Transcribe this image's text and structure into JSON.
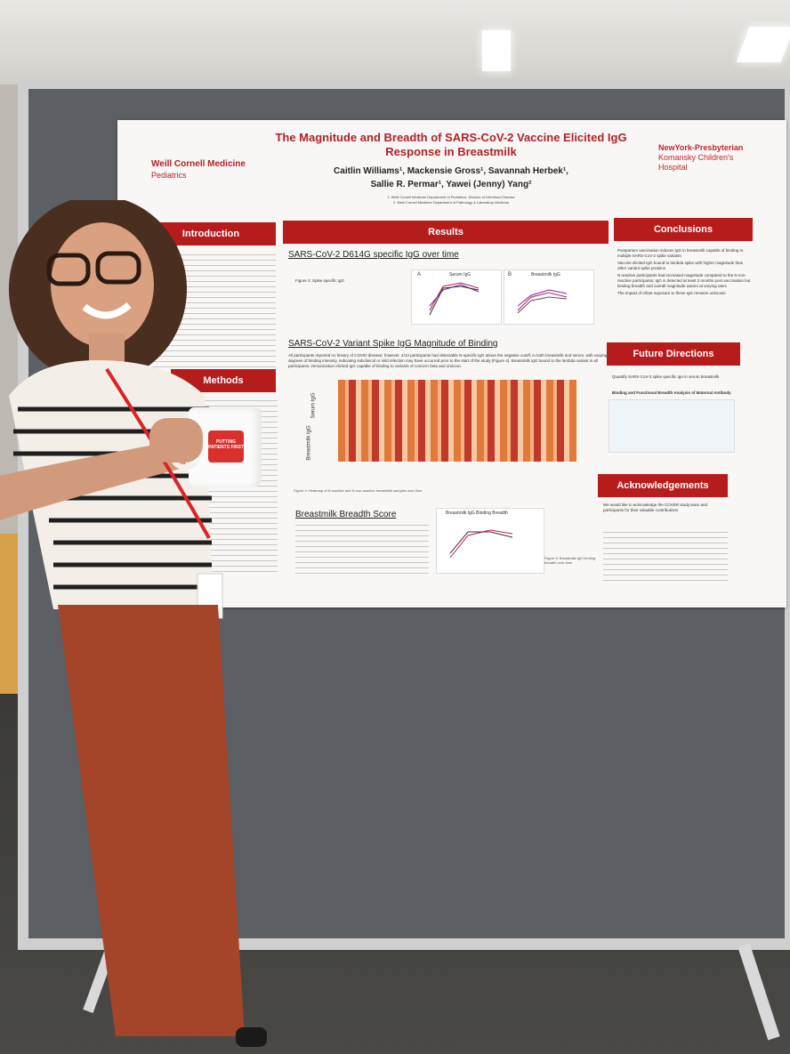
{
  "poster": {
    "title_line1": "The Magnitude and Breadth of SARS-CoV-2 Vaccine Elicited IgG",
    "title_line2": "Response in Breastmilk",
    "authors_line1": "Caitlin Williams¹, Mackensie Gross¹, Savannah Herbek¹,",
    "authors_line2": "Sallie R. Permar¹, Yawei (Jenny) Yang²",
    "affil_line1": "1. Weill Cornell Medicine Department of Pediatrics, Division of Infectious Disease",
    "affil_line2": "2. Weill Cornell Medicine Department of Pathology & Laboratory Medicine",
    "logo_left": "Weill Cornell Medicine",
    "logo_left_sub": "Pediatrics",
    "logo_right": "NewYork-Presbyterian",
    "logo_right_sub1": "Komansky Children's",
    "logo_right_sub2": "Hospital",
    "sections": {
      "introduction": "Introduction",
      "methods": "Methods",
      "results": "Results",
      "conclusions": "Conclusions",
      "future": "Future Directions",
      "acknowledgements": "Acknowledgements"
    },
    "subheads": {
      "d614g": "SARS-CoV-2 D614G specific IgG over time",
      "variant": "SARS-CoV-2 Variant Spike IgG Magnitude of Binding",
      "breadth": "Breastmilk Breadth Score"
    },
    "conclusions_items": [
      "Postpartum vaccination induces IgG in breastmilk capable of binding to multiple SARS-CoV-2 spike variants",
      "Vaccine elicited IgG bound to lambda spike with higher magnitude than other variant spike proteins",
      "N reactive participants had increased magnitude compared to the N non-reactive participants; IgG is detected at least 3 months post vaccination but binding breadth and overall magnitude wanes at varying rates",
      "The impact of infant exposure to these IgG remains unknown"
    ],
    "future_item": "Quantify SARS-CoV-2 spike specific IgA in serum breastmilk",
    "future_figure_title": "Binding and Functional Breadth Analysis of Maternal Antibody",
    "ack_text": "We would like to acknowledge the COVER study team and participants for their valuable contributions",
    "results_text": "All participants reported no history of COVID disease; however, 4/13 participants had detectable N-specific IgG above the negative cutoff, in both breastmilk and serum, with varying degrees of binding intensity, indicating subclinical or mild infection may have occurred prior to the start of the study (Figure 4). Breastmilk IgG bound to the lambda variant in all participants; immunization elicited IgG capable of binding to variants of concern beta and omicron.",
    "heatmap_label_serum": "Serum IgG",
    "heatmap_label_milk": "Breastmilk IgG",
    "chart_a_label": "A",
    "chart_b_label": "B",
    "chart_a_title": "Serum IgG",
    "chart_b_title": "Breastmilk IgG",
    "breadth_chart_title": "Breastmilk IgG Binding Breadth",
    "figure3_caption": "Figure 3: Spike specific IgG",
    "figure4_caption": "Figure 4: Heatmap of N reactive and N non-reactive breastmilk samples over time",
    "figure5_caption": "Figure 5: Breastmilk IgG binding breadth over time"
  },
  "mug": {
    "text": "PUTTING PATIENTS FIRST"
  },
  "colors": {
    "brand_red": "#b71c1c",
    "board_gray": "#5c5f63",
    "pants": "#a4452a"
  }
}
